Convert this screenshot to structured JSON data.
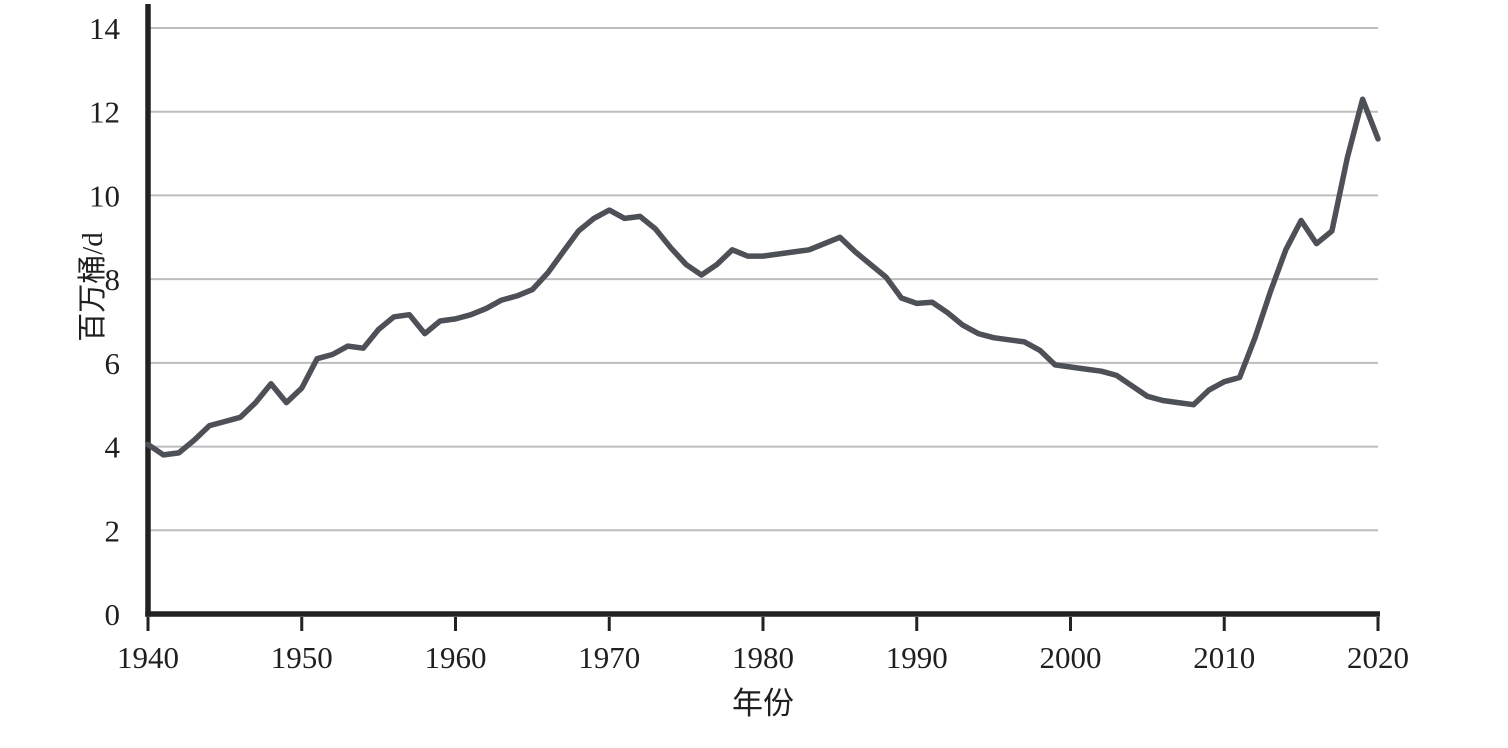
{
  "chart_data": {
    "type": "line",
    "title": "",
    "xlabel": "年份",
    "ylabel": "百万桶/d",
    "x": [
      1940,
      1941,
      1942,
      1943,
      1944,
      1945,
      1946,
      1947,
      1948,
      1949,
      1950,
      1951,
      1952,
      1953,
      1954,
      1955,
      1956,
      1957,
      1958,
      1959,
      1960,
      1961,
      1962,
      1963,
      1964,
      1965,
      1966,
      1967,
      1968,
      1969,
      1970,
      1971,
      1972,
      1973,
      1974,
      1975,
      1976,
      1977,
      1978,
      1979,
      1980,
      1981,
      1982,
      1983,
      1984,
      1985,
      1986,
      1987,
      1988,
      1989,
      1990,
      1991,
      1992,
      1993,
      1994,
      1995,
      1996,
      1997,
      1998,
      1999,
      2000,
      2001,
      2002,
      2003,
      2004,
      2005,
      2006,
      2007,
      2008,
      2009,
      2010,
      2011,
      2012,
      2013,
      2014,
      2015,
      2016,
      2017,
      2018,
      2019,
      2020
    ],
    "values": [
      4.05,
      3.8,
      3.85,
      4.15,
      4.5,
      4.6,
      4.7,
      5.05,
      5.5,
      5.05,
      5.4,
      6.1,
      6.2,
      6.4,
      6.35,
      6.8,
      7.1,
      7.15,
      6.7,
      7.0,
      7.05,
      7.15,
      7.3,
      7.5,
      7.6,
      7.75,
      8.15,
      8.65,
      9.15,
      9.45,
      9.65,
      9.45,
      9.5,
      9.2,
      8.75,
      8.35,
      8.1,
      8.35,
      8.7,
      8.55,
      8.55,
      8.6,
      8.65,
      8.7,
      8.85,
      9.0,
      8.65,
      8.35,
      8.05,
      7.55,
      7.42,
      7.45,
      7.2,
      6.9,
      6.7,
      6.6,
      6.55,
      6.5,
      6.3,
      5.95,
      5.9,
      5.85,
      5.8,
      5.7,
      5.45,
      5.2,
      5.1,
      5.05,
      5.0,
      5.35,
      5.55,
      5.65,
      6.6,
      7.7,
      8.7,
      9.4,
      8.85,
      9.15,
      10.9,
      12.3,
      11.35
    ],
    "xlim": [
      1940,
      2020
    ],
    "ylim": [
      0,
      14
    ],
    "xticks": [
      1940,
      1950,
      1960,
      1970,
      1980,
      1990,
      2000,
      2010,
      2020
    ],
    "yticks": [
      0,
      2,
      4,
      6,
      8,
      10,
      12,
      14
    ],
    "grid": "horizontal",
    "legend": "none",
    "colors": {
      "line": "#4d5056",
      "gridline": "#bdbdc0",
      "axis": "#222225",
      "text": "#1f1f1f",
      "background": "#ffffff"
    }
  }
}
